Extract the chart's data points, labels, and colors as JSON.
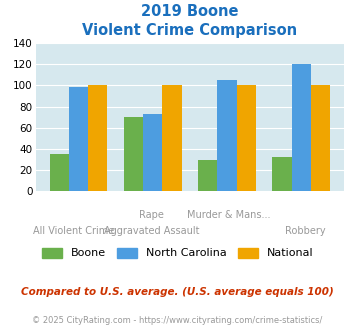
{
  "title_line1": "2019 Boone",
  "title_line2": "Violent Crime Comparison",
  "boone_vals": [
    35,
    70,
    30,
    32
  ],
  "nc_vals": [
    98,
    73,
    105,
    120
  ],
  "national_vals": [
    100,
    100,
    100,
    100
  ],
  "boone_color": "#6ab04c",
  "nc_color": "#4d9de0",
  "national_color": "#f0a500",
  "title_color": "#1a6fbd",
  "bg_color": "#d6e8ee",
  "label_color": "#999999",
  "ylim": [
    0,
    140
  ],
  "yticks": [
    0,
    20,
    40,
    60,
    80,
    100,
    120,
    140
  ],
  "row1_labels": [
    "",
    "Rape",
    "Murder & Mans...",
    ""
  ],
  "row2_labels": [
    "All Violent Crime",
    "Aggravated Assault",
    "",
    "Robbery"
  ],
  "legend_labels": [
    "Boone",
    "North Carolina",
    "National"
  ],
  "note_text": "Compared to U.S. average. (U.S. average equals 100)",
  "copyright_text": "© 2025 CityRating.com - https://www.cityrating.com/crime-statistics/",
  "note_color": "#cc3300",
  "copyright_color": "#999999"
}
